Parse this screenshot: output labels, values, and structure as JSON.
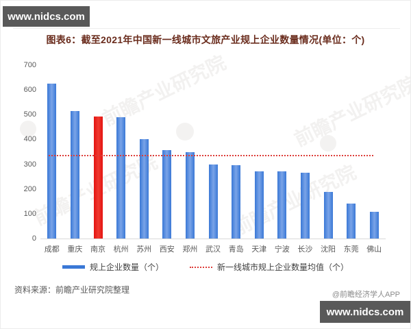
{
  "banner_top": {
    "text": "www.nidcs.com"
  },
  "banner_bottom": {
    "text": "www.nidcs.com"
  },
  "source": "资料来源：前瞻产业研究院整理",
  "credit": "@前瞻经济学人APP",
  "watermark": {
    "text": "前瞻产业研究院"
  },
  "colors": {
    "bar_blue": "#3a78d6",
    "bar_blue_light": "#7aa4e8",
    "bar_red": "#e41310",
    "mean_line": "#dd3c38",
    "title_text": "#6a2c1d",
    "axis_text": "#595959",
    "legend_text": "#404040",
    "source_text": "#595959",
    "credit_text": "#8a8a8a",
    "banner_bg": "#595959",
    "banner_text": "#ffffff",
    "baseline": "#d9d9d9",
    "watermark": "#8a7d74"
  },
  "chart_data": {
    "type": "bar",
    "title": "图表6：截至2021年中国新一线城市文旅产业规上企业数量情况(单位：个)",
    "categories": [
      "成都",
      "重庆",
      "南京",
      "杭州",
      "苏州",
      "西安",
      "郑州",
      "武汉",
      "青岛",
      "天津",
      "宁波",
      "长沙",
      "沈阳",
      "东莞",
      "佛山"
    ],
    "values": [
      625,
      516,
      492,
      489,
      400,
      357,
      350,
      298,
      295,
      272,
      270,
      266,
      187,
      141,
      109
    ],
    "highlight_index": 2,
    "mean_value": 338,
    "xlabel": "",
    "ylabel": "",
    "ylim": [
      0,
      700
    ],
    "yticks": [
      0,
      100,
      200,
      300,
      400,
      500,
      600,
      700
    ],
    "grid": false,
    "legend_position": "bottom",
    "legend": [
      {
        "label": "规上企业数量（个）",
        "type": "bar",
        "color": "#3a78d6"
      },
      {
        "label": "新一线城市规上企业数量均值（个）",
        "type": "dotted-line",
        "color": "#dd3c38"
      }
    ]
  }
}
